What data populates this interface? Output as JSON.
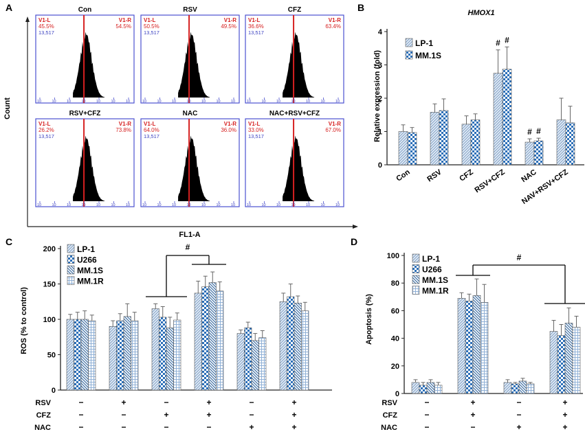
{
  "colors": {
    "marker": "#d62020",
    "frame": "#4a4fd0",
    "count_text": "#3a3fc0",
    "hist": "#000000",
    "axis": "#222222",
    "s1": "#a8bfd8",
    "s2": "#2c6fb8",
    "s3": "#5d89b8",
    "s4": "#8fb0d6"
  },
  "panel_a": {
    "letter": "A",
    "ylabel": "Count",
    "xlabel": "FL1-A",
    "tick_label": "10",
    "total_count": "13,517",
    "plots": [
      {
        "title": "Con",
        "left_label": "V1-L",
        "left_pct": "45.5%",
        "right_label": "V1-R",
        "right_pct": "54.5%",
        "marker_frac": 0.49
      },
      {
        "title": "RSV",
        "left_label": "V1-L",
        "left_pct": "50.5%",
        "right_label": "V1-R",
        "right_pct": "49.5%",
        "marker_frac": 0.49
      },
      {
        "title": "CFZ",
        "left_label": "V1-L",
        "left_pct": "36.6%",
        "right_label": "V1-R",
        "right_pct": "63.4%",
        "marker_frac": 0.49
      },
      {
        "title": "RSV+CFZ",
        "left_label": "V1-L",
        "left_pct": "26.2%",
        "right_label": "V1-R",
        "right_pct": "73.8%",
        "marker_frac": 0.49
      },
      {
        "title": "NAC",
        "left_label": "V1-L",
        "left_pct": "64.0%",
        "right_label": "V1-R",
        "right_pct": "36.0%",
        "marker_frac": 0.49
      },
      {
        "title": "NAC+RSV+CFZ",
        "left_label": "V1-L",
        "left_pct": "33.0%",
        "right_label": "V1-R",
        "right_pct": "67.0%",
        "marker_frac": 0.49
      }
    ]
  },
  "chart_data": [
    {
      "panel": "B",
      "type": "bar",
      "title": "HMOX1",
      "xlabel": "",
      "ylabel": "Relative expression (fold)",
      "ylim": [
        0,
        4
      ],
      "yticks": [
        0,
        1,
        2,
        3,
        4
      ],
      "categories": [
        "Con",
        "RSV",
        "CFZ",
        "RSV+CFZ",
        "NAC",
        "NAV+RSV+CFZ"
      ],
      "series": [
        {
          "name": "LP-1",
          "values": [
            1.0,
            1.58,
            1.22,
            2.75,
            0.68,
            1.35
          ],
          "errors": [
            0.2,
            0.25,
            0.25,
            0.7,
            0.1,
            0.65
          ]
        },
        {
          "name": "MM.1S",
          "values": [
            0.97,
            1.63,
            1.35,
            2.87,
            0.72,
            1.26
          ],
          "errors": [
            0.15,
            0.35,
            0.18,
            0.67,
            0.08,
            0.5
          ]
        }
      ],
      "annotations": [
        {
          "category": "RSV+CFZ",
          "text": "#"
        },
        {
          "category": "NAC",
          "text": "#"
        }
      ]
    },
    {
      "panel": "C",
      "type": "bar",
      "title": "",
      "xlabel": "",
      "ylabel": "ROS (% to control)",
      "ylim": [
        0,
        200
      ],
      "yticks": [
        0,
        50,
        100,
        150,
        200
      ],
      "groups": 6,
      "series": [
        {
          "name": "LP-1",
          "values": [
            100,
            90,
            115,
            137,
            80,
            125
          ],
          "errors": [
            7,
            8,
            7,
            17,
            5,
            12
          ]
        },
        {
          "name": "U266",
          "values": [
            100,
            98,
            103,
            146,
            88,
            132
          ],
          "errors": [
            10,
            10,
            15,
            15,
            8,
            18
          ]
        },
        {
          "name": "MM.1S",
          "values": [
            100,
            104,
            88,
            152,
            70,
            123
          ],
          "errors": [
            12,
            18,
            15,
            15,
            10,
            10
          ]
        },
        {
          "name": "MM.1R",
          "values": [
            98,
            98,
            99,
            140,
            74,
            112
          ],
          "errors": [
            8,
            12,
            10,
            13,
            10,
            12
          ]
        }
      ],
      "annotation": "#",
      "treatments": {
        "RSV": [
          "−",
          "+",
          "−",
          "+",
          "−",
          "+"
        ],
        "CFZ": [
          "−",
          "−",
          "+",
          "+",
          "−",
          "+"
        ],
        "NAC": [
          "−",
          "−",
          "−",
          "−",
          "+",
          "+"
        ]
      }
    },
    {
      "panel": "D",
      "type": "bar",
      "title": "",
      "xlabel": "",
      "ylabel": "Apoptosis (%)",
      "ylim": [
        0,
        100
      ],
      "yticks": [
        0,
        20,
        40,
        60,
        80,
        100
      ],
      "groups": 4,
      "series": [
        {
          "name": "LP-1",
          "values": [
            8,
            69,
            8,
            45
          ],
          "errors": [
            2,
            4,
            2,
            8
          ]
        },
        {
          "name": "U266",
          "values": [
            6,
            67,
            7,
            42
          ],
          "errors": [
            2,
            5,
            1,
            8
          ]
        },
        {
          "name": "MM.1S",
          "values": [
            8,
            71,
            9,
            51
          ],
          "errors": [
            2,
            12,
            2,
            11
          ]
        },
        {
          "name": "MM.1R",
          "values": [
            6,
            66,
            7,
            48
          ],
          "errors": [
            2,
            13,
            1,
            8
          ]
        }
      ],
      "annotation": "#",
      "treatments": {
        "RSV": [
          "−",
          "+",
          "−",
          "+"
        ],
        "CFZ": [
          "−",
          "+",
          "−",
          "+"
        ],
        "NAC": [
          "−",
          "−",
          "+",
          "+"
        ]
      }
    }
  ]
}
